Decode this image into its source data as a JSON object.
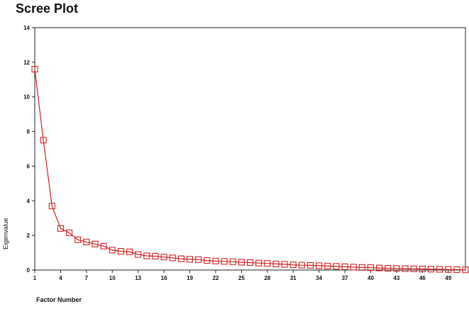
{
  "chart_data": {
    "type": "line",
    "title": "Scree Plot",
    "xlabel": "Factor Number",
    "ylabel": "Eigenvalue",
    "xlim": [
      1,
      51
    ],
    "ylim": [
      0,
      14
    ],
    "xticks": [
      1,
      4,
      7,
      10,
      13,
      16,
      19,
      22,
      25,
      28,
      31,
      34,
      37,
      40,
      43,
      46,
      49
    ],
    "yticks": [
      0,
      2,
      4,
      6,
      8,
      10,
      12,
      14
    ],
    "grid": false,
    "legend": "none",
    "colors": {
      "series": "#d42020",
      "axis": "#222222"
    },
    "series": [
      {
        "marker": "square",
        "x": [
          1,
          2,
          3,
          4,
          5,
          6,
          7,
          8,
          9,
          10,
          11,
          12,
          13,
          14,
          15,
          16,
          17,
          18,
          19,
          20,
          21,
          22,
          23,
          24,
          25,
          26,
          27,
          28,
          29,
          30,
          31,
          32,
          33,
          34,
          35,
          36,
          37,
          38,
          39,
          40,
          41,
          42,
          43,
          44,
          45,
          46,
          47,
          48,
          49,
          50,
          51
        ],
        "values": [
          11.6,
          7.5,
          3.7,
          2.4,
          2.15,
          1.75,
          1.62,
          1.5,
          1.38,
          1.15,
          1.08,
          1.05,
          0.9,
          0.82,
          0.8,
          0.75,
          0.7,
          0.65,
          0.62,
          0.6,
          0.55,
          0.52,
          0.5,
          0.48,
          0.45,
          0.43,
          0.4,
          0.38,
          0.35,
          0.33,
          0.3,
          0.28,
          0.27,
          0.25,
          0.23,
          0.21,
          0.19,
          0.17,
          0.15,
          0.14,
          0.12,
          0.1,
          0.09,
          0.08,
          0.07,
          0.06,
          0.05,
          0.04,
          0.03,
          0.02,
          0.01
        ]
      }
    ]
  }
}
